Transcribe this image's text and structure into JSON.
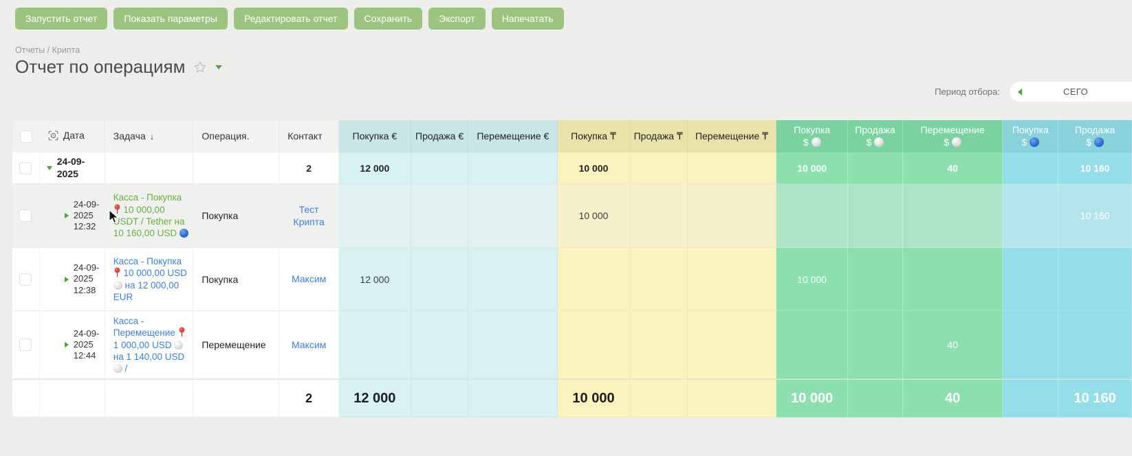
{
  "toolbar": {
    "buttons": [
      "Запустить отчет",
      "Показать параметры",
      "Редактировать отчет",
      "Сохранить",
      "Экспорт",
      "Напечатать"
    ]
  },
  "breadcrumb": "Отчеты / Крипта",
  "page_title": "Отчет по операциям",
  "period": {
    "label": "Период отбора:",
    "value": "СЕГО"
  },
  "colors": {
    "button_green": "#9cc480",
    "link_blue": "#3d7fd9",
    "link_green": "#68b03c",
    "eur_header": "#c9e6e7",
    "eur_cell": "#d8f2f4",
    "kzt_header": "#e9e3ab",
    "kzt_cell": "#faf3bd",
    "usd_white_header": "#7bd2a1",
    "usd_white_cell": "#8cdfae",
    "usd_blue_header": "#87d2db",
    "usd_blue_cell": "#93dee9"
  },
  "table": {
    "columns": [
      {
        "key": "check",
        "type": "checkbox"
      },
      {
        "key": "date",
        "label": "Дата",
        "icon": "column-settings"
      },
      {
        "key": "task",
        "label": "Задача",
        "sort": "↓"
      },
      {
        "key": "operation",
        "label": "Операция."
      },
      {
        "key": "contact",
        "label": "Контакт"
      },
      {
        "key": "buy_eur",
        "label": "Покупка €",
        "group": "eur"
      },
      {
        "key": "sell_eur",
        "label": "Продажа €",
        "group": "eur"
      },
      {
        "key": "move_eur",
        "label": "Перемещение €",
        "group": "eur"
      },
      {
        "key": "buy_kzt",
        "label": "Покупка ₸",
        "group": "kzt"
      },
      {
        "key": "sell_kzt",
        "label": "Продажа ₸",
        "group": "kzt"
      },
      {
        "key": "move_kzt",
        "label": "Перемещение ₸",
        "group": "kzt"
      },
      {
        "key": "buy_usdw",
        "label": "Покупка",
        "symbol": "$",
        "ball": "white",
        "group": "usdw"
      },
      {
        "key": "sell_usdw",
        "label": "Продажа",
        "symbol": "$",
        "ball": "white",
        "group": "usdw"
      },
      {
        "key": "move_usdw",
        "label": "Перемещение",
        "symbol": "$",
        "ball": "white",
        "group": "usdw"
      },
      {
        "key": "buy_usdb",
        "label": "Покупка",
        "symbol": "$",
        "ball": "blue",
        "group": "usdb"
      },
      {
        "key": "sell_usdb",
        "label": "Продажа",
        "symbol": "$",
        "ball": "blue",
        "group": "usdb"
      }
    ],
    "rows": [
      {
        "type": "group",
        "date": "24-09-2025",
        "cells": {
          "contact": "2",
          "buy_eur": "12 000",
          "buy_kzt": "10 000",
          "buy_usdw": "10 000",
          "move_usdw": "40",
          "sell_usdb": "10 160"
        }
      },
      {
        "type": "detail",
        "hover": true,
        "date": "24-09-2025 12:32",
        "task": "Касса - Покупка 📍 10 000,00 USDT / Tether на 10 160,00 USD 🔵",
        "task_color": "green",
        "operation": "Покупка",
        "contact": "Тест Крипта",
        "cells": {
          "buy_kzt": "10 000",
          "sell_usdb": "10 160"
        }
      },
      {
        "type": "detail",
        "date": "24-09-2025 12:38",
        "task": "Касса - Покупка 📍 10 000,00 USD ⚪ на 12 000,00 EUR",
        "task_color": "blue",
        "operation": "Покупка",
        "contact": "Максим",
        "cells": {
          "buy_eur": "12 000",
          "buy_usdw": "10 000"
        }
      },
      {
        "type": "detail",
        "date": "24-09-2025 12:44",
        "task": "Касса - Перемещение 📍 1 000,00 USD ⚪ на 1 140,00 USD ⚪ /",
        "task_color": "blue",
        "operation": "Перемещение",
        "contact": "Максим",
        "cells": {
          "move_usdw": "40"
        }
      },
      {
        "type": "total",
        "cells": {
          "contact": "2",
          "buy_eur": "12 000",
          "buy_kzt": "10 000",
          "buy_usdw": "10 000",
          "move_usdw": "40",
          "sell_usdb": "10 160"
        }
      }
    ]
  }
}
